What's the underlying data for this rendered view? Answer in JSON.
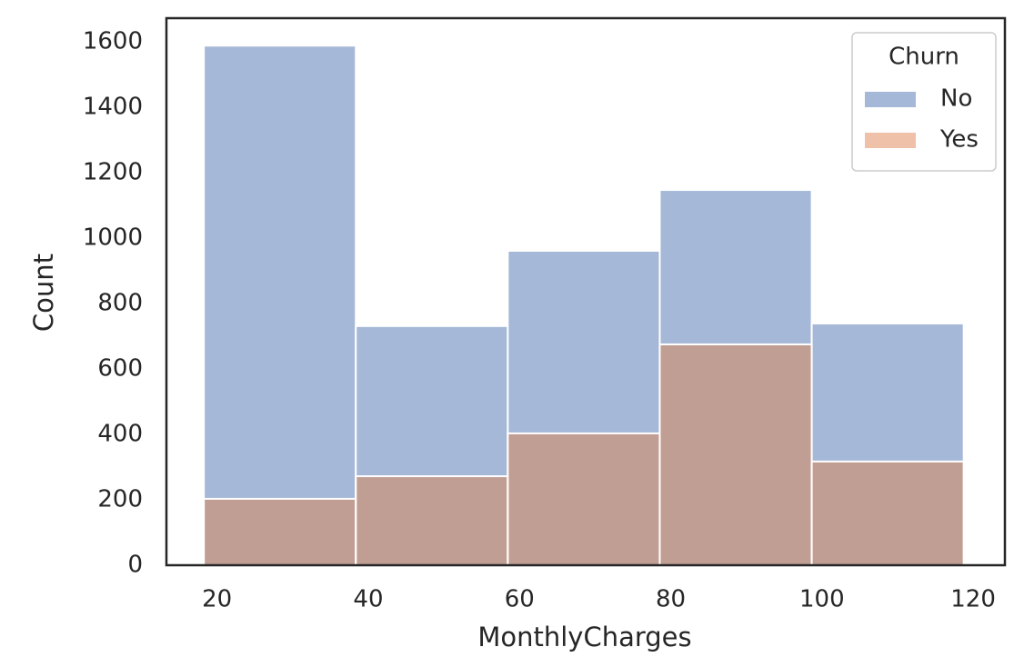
{
  "chart_data": {
    "type": "histogram",
    "xlabel": "MonthlyCharges",
    "ylabel": "Count",
    "bins": [
      18.25,
      38.35,
      58.45,
      78.55,
      98.65,
      118.75
    ],
    "series": [
      {
        "name": "No",
        "color": "#4c72b0",
        "values": [
          1588,
          731,
          961,
          1147,
          739
        ]
      },
      {
        "name": "Yes",
        "color": "#dd8452",
        "values": [
          203,
          272,
          403,
          675,
          317
        ]
      }
    ],
    "legend_title": "Churn",
    "legend": "upper right",
    "xlim": [
      13.3,
      124.2
    ],
    "xticks": [
      20,
      40,
      60,
      80,
      100,
      120
    ],
    "ylim": [
      0,
      1672
    ],
    "yticks": [
      0,
      200,
      400,
      600,
      800,
      1000,
      1200,
      1400,
      1600
    ],
    "grid": false
  }
}
